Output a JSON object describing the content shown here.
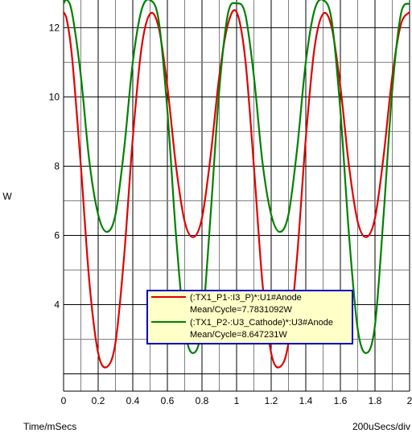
{
  "chart_data": {
    "type": "line",
    "ylabel": "W",
    "xlabel": "Time/mSecs",
    "x_scale_note": "200uSecs/div",
    "xlim": [
      0,
      2
    ],
    "ylim": [
      1.5,
      12.8
    ],
    "x_ticks": [
      0,
      0.2,
      0.4,
      0.6,
      0.8,
      1,
      1.2,
      1.4,
      1.6,
      1.8,
      2
    ],
    "x_tick_labels": [
      "0",
      "0.2",
      "0.4",
      "0.6",
      "0.8",
      "1",
      "1.2",
      "1.4",
      "1.6",
      "1.8",
      "2"
    ],
    "y_ticks": [
      4,
      6,
      8,
      10,
      12
    ],
    "y_tick_labels": [
      "4",
      "6",
      "8",
      "10",
      "12"
    ],
    "grid": true,
    "legend_position": "center-bottom",
    "series": [
      {
        "name": "(:TX1_P1-:I3_P)*:U1#Anode",
        "stat": "Mean/Cycle=7.7831092W",
        "color": "#e00000",
        "x": [
          0,
          0.02,
          0.05,
          0.1,
          0.15,
          0.2,
          0.25,
          0.3,
          0.35,
          0.4,
          0.45,
          0.5,
          0.55,
          0.6,
          0.65,
          0.7,
          0.75,
          0.8,
          0.85,
          0.9,
          0.95,
          1.0,
          1.05,
          1.1,
          1.15,
          1.2,
          1.25,
          1.3,
          1.35,
          1.4,
          1.45,
          1.5,
          1.55,
          1.6,
          1.65,
          1.7,
          1.75,
          1.8,
          1.85,
          1.9,
          1.95,
          2.0
        ],
        "y": [
          12.45,
          12.2,
          11.1,
          8.0,
          4.6,
          2.6,
          2.2,
          2.9,
          5.4,
          8.8,
          11.4,
          12.4,
          12.0,
          10.3,
          8.0,
          6.4,
          5.95,
          6.5,
          8.3,
          10.6,
          12.1,
          12.45,
          11.1,
          8.0,
          4.6,
          2.6,
          2.2,
          2.9,
          5.4,
          8.8,
          11.4,
          12.4,
          12.0,
          10.3,
          8.0,
          6.4,
          5.95,
          6.5,
          8.3,
          10.6,
          12.1,
          12.45
        ]
      },
      {
        "name": "(:TX1_P2-:U3_Cathode)*:U3#Anode",
        "stat": "Mean/Cycle=8.647231W",
        "color": "#008000",
        "x": [
          0,
          0.02,
          0.05,
          0.1,
          0.15,
          0.2,
          0.25,
          0.3,
          0.35,
          0.4,
          0.45,
          0.5,
          0.55,
          0.6,
          0.65,
          0.7,
          0.75,
          0.8,
          0.85,
          0.9,
          0.95,
          1.0,
          1.05,
          1.1,
          1.15,
          1.2,
          1.25,
          1.3,
          1.35,
          1.4,
          1.45,
          1.5,
          1.55,
          1.6,
          1.65,
          1.7,
          1.75,
          1.8,
          1.85,
          1.9,
          1.95,
          2.0
        ],
        "y": [
          12.7,
          12.8,
          12.4,
          10.6,
          8.1,
          6.6,
          6.1,
          6.6,
          8.5,
          11.0,
          12.5,
          12.8,
          12.2,
          9.6,
          6.0,
          3.3,
          2.6,
          3.4,
          6.6,
          10.2,
          12.4,
          12.7,
          12.4,
          10.6,
          8.1,
          6.6,
          6.1,
          6.6,
          8.5,
          11.0,
          12.5,
          12.8,
          12.2,
          9.6,
          6.0,
          3.3,
          2.6,
          3.4,
          6.6,
          10.2,
          12.4,
          12.7
        ]
      }
    ]
  }
}
